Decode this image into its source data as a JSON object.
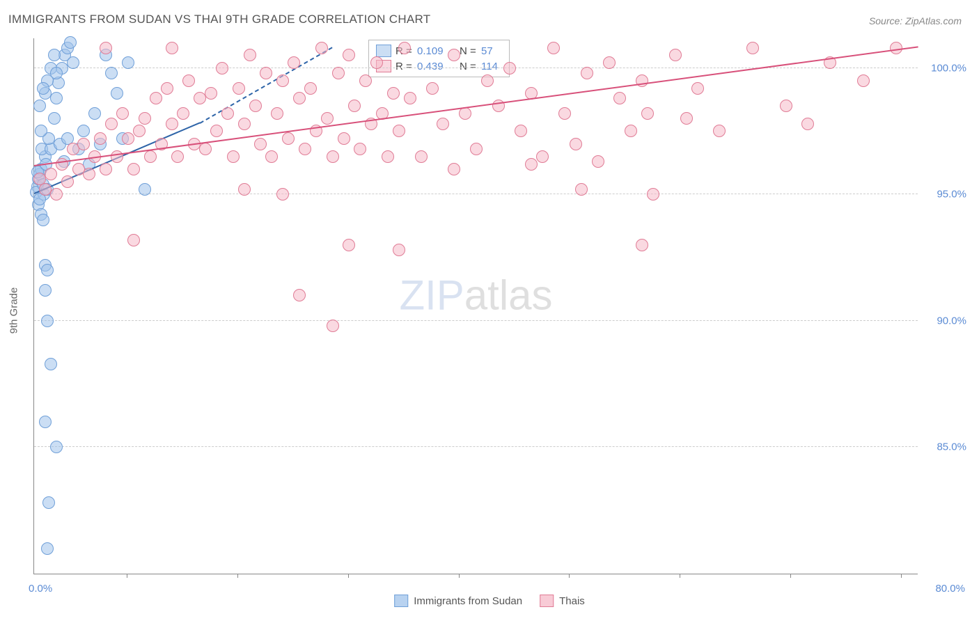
{
  "title": "IMMIGRANTS FROM SUDAN VS THAI 9TH GRADE CORRELATION CHART",
  "source": "Source: ZipAtlas.com",
  "ylabel": "9th Grade",
  "watermark": {
    "part1": "ZIP",
    "part2": "atlas"
  },
  "chart": {
    "type": "scatter",
    "xlim": [
      0,
      80
    ],
    "ylim": [
      80,
      101.2
    ],
    "xticks_pct": [
      10.5,
      23,
      35.5,
      48,
      60.5,
      73,
      85.5,
      98
    ],
    "x_origin_label": "0.0%",
    "x_max_label": "80.0%",
    "yticks": [
      {
        "val": 100.0,
        "label": "100.0%"
      },
      {
        "val": 95.0,
        "label": "95.0%"
      },
      {
        "val": 90.0,
        "label": "90.0%"
      },
      {
        "val": 85.0,
        "label": "85.0%"
      }
    ],
    "grid_color": "#cccccc",
    "background_color": "#ffffff",
    "marker_radius": 9,
    "marker_border": 1.5,
    "series": [
      {
        "name": "Immigrants from Sudan",
        "fill": "rgba(160,195,235,0.55)",
        "stroke": "#6f9fd8",
        "R": "0.109",
        "N": "57",
        "trend": {
          "x1": 0,
          "y1": 95.0,
          "x2": 15,
          "y2": 97.8,
          "dash": "4 4",
          "extend_x": 27,
          "extend_y": 100.8,
          "width": 2.2,
          "color": "#2e64a8"
        },
        "points": [
          [
            0.3,
            95.3
          ],
          [
            0.4,
            95.6
          ],
          [
            0.2,
            95.1
          ],
          [
            0.5,
            95.8
          ],
          [
            0.6,
            96.0
          ],
          [
            0.3,
            95.9
          ],
          [
            0.8,
            95.4
          ],
          [
            0.9,
            95.0
          ],
          [
            1.0,
            96.5
          ],
          [
            0.7,
            96.8
          ],
          [
            0.4,
            94.6
          ],
          [
            0.5,
            94.8
          ],
          [
            0.6,
            94.2
          ],
          [
            0.8,
            94.0
          ],
          [
            1.2,
            95.2
          ],
          [
            1.1,
            96.2
          ],
          [
            1.5,
            96.8
          ],
          [
            1.3,
            97.2
          ],
          [
            1.8,
            98.0
          ],
          [
            2.0,
            98.8
          ],
          [
            2.2,
            99.4
          ],
          [
            2.5,
            100.0
          ],
          [
            2.8,
            100.5
          ],
          [
            3.0,
            100.8
          ],
          [
            3.3,
            101.0
          ],
          [
            3.5,
            100.2
          ],
          [
            1.0,
            99.0
          ],
          [
            1.2,
            99.5
          ],
          [
            1.5,
            100.0
          ],
          [
            1.8,
            100.5
          ],
          [
            2.0,
            99.8
          ],
          [
            0.5,
            98.5
          ],
          [
            0.8,
            99.2
          ],
          [
            0.6,
            97.5
          ],
          [
            2.3,
            97.0
          ],
          [
            2.7,
            96.3
          ],
          [
            3.0,
            97.2
          ],
          [
            4.0,
            96.8
          ],
          [
            4.5,
            97.5
          ],
          [
            5.0,
            96.2
          ],
          [
            5.5,
            98.2
          ],
          [
            6.0,
            97.0
          ],
          [
            8.0,
            97.2
          ],
          [
            10.0,
            95.2
          ],
          [
            1.0,
            92.2
          ],
          [
            1.2,
            92.0
          ],
          [
            1.0,
            91.2
          ],
          [
            1.2,
            90.0
          ],
          [
            1.5,
            88.3
          ],
          [
            2.0,
            85.0
          ],
          [
            1.0,
            86.0
          ],
          [
            1.3,
            82.8
          ],
          [
            1.2,
            81.0
          ],
          [
            6.5,
            100.5
          ],
          [
            7.0,
            99.8
          ],
          [
            7.5,
            99.0
          ],
          [
            8.5,
            100.2
          ]
        ]
      },
      {
        "name": "Thais",
        "fill": "rgba(245,185,200,0.55)",
        "stroke": "#e07b95",
        "R": "0.439",
        "N": "114",
        "trend": {
          "x1": 0,
          "y1": 96.1,
          "x2": 80,
          "y2": 100.8,
          "width": 2.2,
          "color": "#d8507a"
        },
        "points": [
          [
            0.5,
            95.6
          ],
          [
            1.0,
            95.2
          ],
          [
            1.5,
            95.8
          ],
          [
            2.0,
            95.0
          ],
          [
            2.5,
            96.2
          ],
          [
            3.0,
            95.5
          ],
          [
            3.5,
            96.8
          ],
          [
            4.0,
            96.0
          ],
          [
            4.5,
            97.0
          ],
          [
            5.0,
            95.8
          ],
          [
            5.5,
            96.5
          ],
          [
            6.0,
            97.2
          ],
          [
            6.5,
            96.0
          ],
          [
            7.0,
            97.8
          ],
          [
            7.5,
            96.5
          ],
          [
            8.0,
            98.2
          ],
          [
            8.5,
            97.2
          ],
          [
            9.0,
            96.0
          ],
          [
            9.5,
            97.5
          ],
          [
            10.0,
            98.0
          ],
          [
            10.5,
            96.5
          ],
          [
            11.0,
            98.8
          ],
          [
            11.5,
            97.0
          ],
          [
            12.0,
            99.2
          ],
          [
            12.5,
            97.8
          ],
          [
            13.0,
            96.5
          ],
          [
            13.5,
            98.2
          ],
          [
            14.0,
            99.5
          ],
          [
            14.5,
            97.0
          ],
          [
            15.0,
            98.8
          ],
          [
            15.5,
            96.8
          ],
          [
            16.0,
            99.0
          ],
          [
            16.5,
            97.5
          ],
          [
            17.0,
            100.0
          ],
          [
            17.5,
            98.2
          ],
          [
            18.0,
            96.5
          ],
          [
            18.5,
            99.2
          ],
          [
            19.0,
            97.8
          ],
          [
            19.5,
            100.5
          ],
          [
            20.0,
            98.5
          ],
          [
            20.5,
            97.0
          ],
          [
            21.0,
            99.8
          ],
          [
            21.5,
            96.5
          ],
          [
            22.0,
            98.2
          ],
          [
            22.5,
            99.5
          ],
          [
            23.0,
            97.2
          ],
          [
            23.5,
            100.2
          ],
          [
            24.0,
            98.8
          ],
          [
            24.5,
            96.8
          ],
          [
            25.0,
            99.2
          ],
          [
            25.5,
            97.5
          ],
          [
            26.0,
            100.8
          ],
          [
            26.5,
            98.0
          ],
          [
            27.0,
            96.5
          ],
          [
            27.5,
            99.8
          ],
          [
            28.0,
            97.2
          ],
          [
            28.5,
            100.5
          ],
          [
            29.0,
            98.5
          ],
          [
            29.5,
            96.8
          ],
          [
            30.0,
            99.5
          ],
          [
            30.5,
            97.8
          ],
          [
            31.0,
            100.2
          ],
          [
            31.5,
            98.2
          ],
          [
            32.0,
            96.5
          ],
          [
            32.5,
            99.0
          ],
          [
            33.0,
            97.5
          ],
          [
            33.5,
            100.8
          ],
          [
            34.0,
            98.8
          ],
          [
            35.0,
            96.5
          ],
          [
            36.0,
            99.2
          ],
          [
            37.0,
            97.8
          ],
          [
            38.0,
            100.5
          ],
          [
            39.0,
            98.2
          ],
          [
            40.0,
            96.8
          ],
          [
            41.0,
            99.5
          ],
          [
            42.0,
            98.5
          ],
          [
            43.0,
            100.0
          ],
          [
            44.0,
            97.5
          ],
          [
            45.0,
            99.0
          ],
          [
            46.0,
            96.5
          ],
          [
            47.0,
            100.8
          ],
          [
            48.0,
            98.2
          ],
          [
            49.0,
            97.0
          ],
          [
            50.0,
            99.8
          ],
          [
            51.0,
            96.3
          ],
          [
            52.0,
            100.2
          ],
          [
            53.0,
            98.8
          ],
          [
            54.0,
            97.5
          ],
          [
            55.0,
            99.5
          ],
          [
            56.0,
            95.0
          ],
          [
            58.0,
            100.5
          ],
          [
            59.0,
            98.0
          ],
          [
            60.0,
            99.2
          ],
          [
            62.0,
            97.5
          ],
          [
            65.0,
            100.8
          ],
          [
            68.0,
            98.5
          ],
          [
            70.0,
            97.8
          ],
          [
            72.0,
            100.2
          ],
          [
            75.0,
            99.5
          ],
          [
            78.0,
            100.8
          ],
          [
            6.5,
            100.8
          ],
          [
            9.0,
            93.2
          ],
          [
            19.0,
            95.2
          ],
          [
            22.5,
            95.0
          ],
          [
            24.0,
            91.0
          ],
          [
            27.0,
            89.8
          ],
          [
            33.0,
            92.8
          ],
          [
            38.0,
            96.0
          ],
          [
            28.5,
            93.0
          ],
          [
            49.5,
            95.2
          ],
          [
            55.5,
            98.2
          ],
          [
            55.0,
            93.0
          ],
          [
            45.0,
            96.2
          ],
          [
            12.5,
            100.8
          ]
        ]
      }
    ]
  },
  "legend_bottom": [
    {
      "label": "Immigrants from Sudan",
      "fill": "rgba(160,195,235,0.75)",
      "stroke": "#6f9fd8"
    },
    {
      "label": "Thais",
      "fill": "rgba(245,185,200,0.75)",
      "stroke": "#e07b95"
    }
  ]
}
